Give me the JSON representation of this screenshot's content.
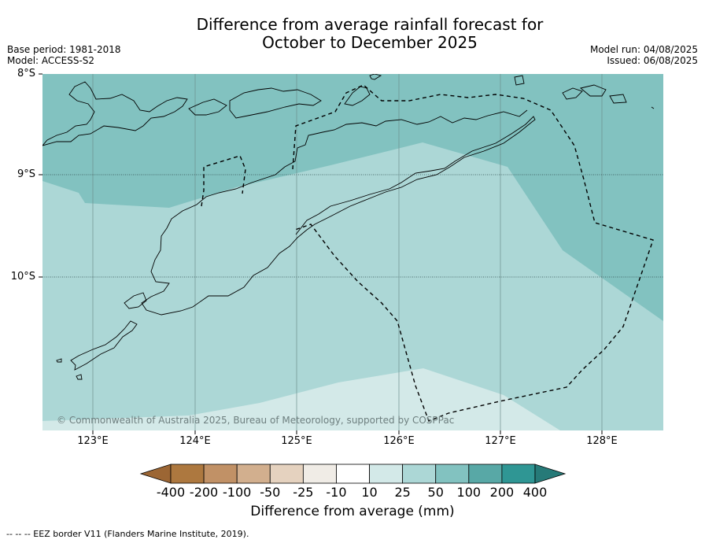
{
  "title": {
    "line1": "Difference from average rainfall forecast for",
    "line2": "October to December 2025"
  },
  "meta": {
    "base_period": "Base period: 1981-2018",
    "model": "Model: ACCESS-S2",
    "model_run": "Model run: 04/08/2025",
    "issued": "Issued: 06/08/2025"
  },
  "map": {
    "lat_labels": [
      "8°S",
      "9°S",
      "10°S"
    ],
    "lon_labels": [
      "123°E",
      "124°E",
      "125°E",
      "126°E",
      "127°E",
      "128°E"
    ],
    "copyright": "© Commonwealth of Australia 2025, Bureau of Meteorology, supported by COSPPac",
    "zones": [
      {
        "category": "50 to 100 mm",
        "color": "#82c2c0"
      },
      {
        "category": "25 to 50 mm",
        "color": "#acd7d6"
      },
      {
        "category": "10 to 25 mm",
        "color": "#d3e9e8"
      }
    ]
  },
  "colorbar": {
    "title": "Difference from average (mm)",
    "tick_labels": [
      "-400",
      "-200",
      "-100",
      "-50",
      "-25",
      "-10",
      "10",
      "25",
      "50",
      "100",
      "200",
      "400"
    ],
    "colors": [
      "#9c6634",
      "#ad783f",
      "#c19166",
      "#d2af8e",
      "#e5d2bf",
      "#f0ece6",
      "#ffffff",
      "#d3e9e8",
      "#acd7d6",
      "#82c2c0",
      "#58a8a6",
      "#2f9694",
      "#267a78"
    ]
  },
  "footnote": "--  --  -- EEZ border V11 (Flanders Marine Institute, 2019)."
}
